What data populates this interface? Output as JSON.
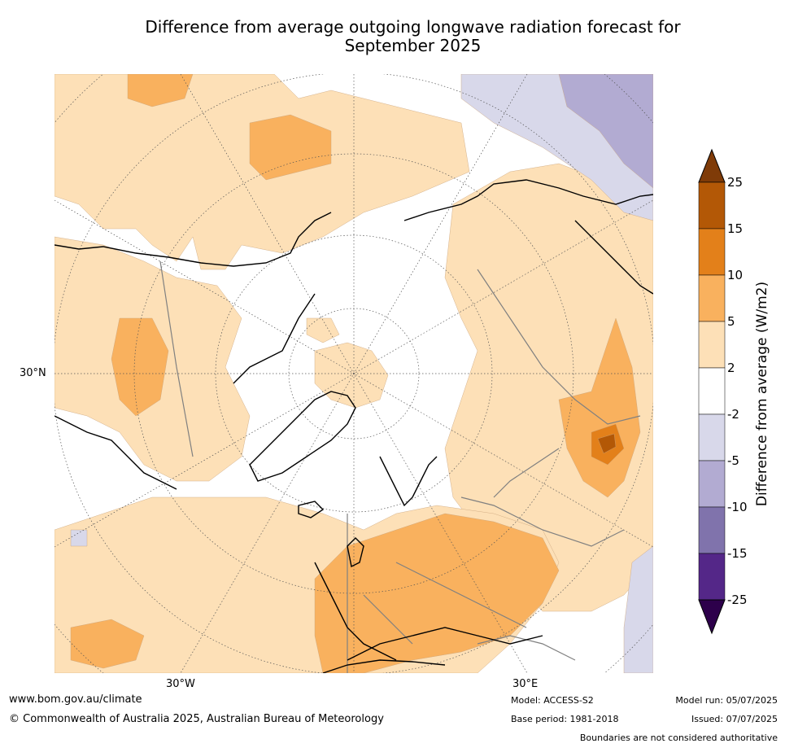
{
  "title_line1": "Difference from average outgoing longwave radiation forecast for",
  "title_line2": "September 2025",
  "map": {
    "latitude_label": "30°N",
    "longitude_labels": [
      "30°W",
      "30°E"
    ],
    "projection": "north polar stereographic",
    "palette": {
      "white": "#ffffff",
      "lightOrange": "#fde0b7",
      "medOrange": "#f9b15e",
      "darkOrange": "#e3801a",
      "brown": "#b35806",
      "lightPurple": "#d8d8ea",
      "medPurple": "#b2abd2",
      "darkPurple": "#8073ac",
      "coast": "#000000",
      "border": "#808080",
      "grid": "#555555"
    }
  },
  "colorbar": {
    "label": "Difference from average (W/m2)",
    "ticks": [
      "25",
      "15",
      "10",
      "5",
      "2",
      "-2",
      "-5",
      "-10",
      "-15",
      "-25"
    ],
    "colors": [
      "#7f3b08",
      "#b35806",
      "#e3801a",
      "#f9b15e",
      "#fde0b7",
      "#ffffff",
      "#d8d8ea",
      "#b2abd2",
      "#8073ac",
      "#542788",
      "#2d004b"
    ]
  },
  "footer": {
    "website": "www.bom.gov.au/climate",
    "copyright": "© Commonwealth of Australia 2025, Australian Bureau of Meteorology",
    "model": "Model: ACCESS-S2",
    "base_period": "Base period: 1981-2018",
    "model_run": "Model run: 05/07/2025",
    "issued": "Issued: 07/07/2025",
    "disclaimer": "Boundaries are not considered authoritative"
  }
}
